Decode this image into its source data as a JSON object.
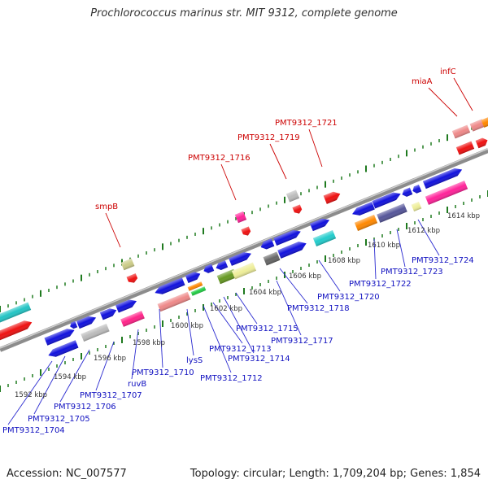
{
  "title": "Prochlorococcus marinus str. MIT 9312, complete genome",
  "footer": {
    "accession": "Accession: NC_007577",
    "topology": "Topology: circular; Length: 1,709,204 bp; Genes: 1,854"
  },
  "colors": {
    "forward_label": "#0000cc",
    "feature_label": "#cc0000",
    "backbone": "#999999",
    "tick": "#006600"
  },
  "scale_labels": [
    "1592 kbp",
    "1594 kbp",
    "1596 kbp",
    "1598 kbp",
    "1600 kbp",
    "1602 kbp",
    "1604 kbp",
    "1606 kbp",
    "1608 kbp",
    "1610 kbp",
    "1612 kbp",
    "1614 kbp"
  ],
  "gene_labels_blue": [
    "PMT9312_1704",
    "PMT9312_1705",
    "PMT9312_1706",
    "PMT9312_1707",
    "ruvB",
    "PMT9312_1710",
    "lysS",
    "PMT9312_1712",
    "PMT9312_1713",
    "PMT9312_1714",
    "PMT9312_1715",
    "PMT9312_1717",
    "PMT9312_1718",
    "PMT9312_1720",
    "PMT9312_1722",
    "PMT9312_1723",
    "PMT9312_1724"
  ],
  "gene_labels_red": [
    "smpB",
    "PMT9312_1716",
    "PMT9312_1719",
    "PMT9312_1721",
    "miaA",
    "infC"
  ]
}
